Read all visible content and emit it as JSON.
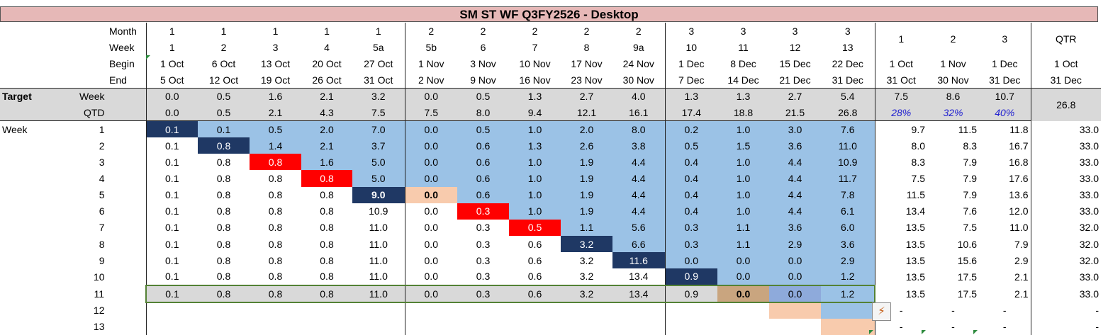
{
  "title": "SM ST WF Q3FY2526 - Desktop",
  "colors": {
    "title_bg": "#e6b8b7",
    "blue": "#9bc2e6",
    "navy": "#1f3864",
    "red": "#ff0000",
    "peach": "#f8cbad",
    "tan": "#c9a57f",
    "steel": "#8eaadb",
    "gray": "#d9d9d9",
    "selection": "#548235",
    "percent_text": "#1f1fd0"
  },
  "header": {
    "month_label": "Month",
    "week_label": "Week",
    "begin_label": "Begin",
    "end_label": "End",
    "months": [
      "1",
      "1",
      "1",
      "1",
      "1",
      "2",
      "2",
      "2",
      "2",
      "2",
      "3",
      "3",
      "3",
      "3"
    ],
    "weeks": [
      "1",
      "2",
      "3",
      "4",
      "5a",
      "5b",
      "6",
      "7",
      "8",
      "9a",
      "10",
      "11",
      "12",
      "13"
    ],
    "begins": [
      "1 Oct",
      "6 Oct",
      "13 Oct",
      "20 Oct",
      "27 Oct",
      "1 Nov",
      "3 Nov",
      "10 Nov",
      "17 Nov",
      "24 Nov",
      "1 Dec",
      "8 Dec",
      "15 Dec",
      "22 Dec"
    ],
    "ends": [
      "5 Oct",
      "12 Oct",
      "19 Oct",
      "26 Oct",
      "31 Oct",
      "2 Nov",
      "9 Nov",
      "16 Nov",
      "23 Nov",
      "30 Nov",
      "7 Dec",
      "14 Dec",
      "21 Dec",
      "31 Dec"
    ],
    "summary_months": [
      "1",
      "2",
      "3"
    ],
    "summary_begins": [
      "1 Oct",
      "1 Nov",
      "1 Dec"
    ],
    "summary_ends": [
      "31 Oct",
      "30 Nov",
      "31 Dec"
    ],
    "qtr_label": "QTR",
    "qtr_begin": "1 Oct",
    "qtr_end": "31 Dec"
  },
  "target": {
    "label": "Target",
    "week_label": "Week",
    "qtd_label": "QTD",
    "week": [
      "0.0",
      "0.5",
      "1.6",
      "2.1",
      "3.2",
      "0.0",
      "0.5",
      "1.3",
      "2.7",
      "4.0",
      "1.3",
      "1.3",
      "2.7",
      "5.4"
    ],
    "week_summary": [
      "7.5",
      "8.6",
      "10.7"
    ],
    "week_qtr": "26.8",
    "qtd": [
      "0.0",
      "0.5",
      "2.1",
      "4.3",
      "7.5",
      "7.5",
      "8.0",
      "9.4",
      "12.1",
      "16.1",
      "17.4",
      "18.8",
      "21.5",
      "26.8"
    ],
    "qtd_percent": [
      "28%",
      "32%",
      "40%"
    ]
  },
  "forecast": {
    "row_group_label": "Week",
    "rows": [
      {
        "week": "1",
        "values": [
          "0.1",
          "0.1",
          "0.5",
          "2.0",
          "7.0",
          "0.0",
          "0.5",
          "1.0",
          "2.0",
          "8.0",
          "0.2",
          "1.0",
          "3.0",
          "7.6"
        ],
        "months": [
          "9.7",
          "11.5",
          "11.8"
        ],
        "qtr": "33.0"
      },
      {
        "week": "2",
        "values": [
          "0.1",
          "0.8",
          "1.4",
          "2.1",
          "3.7",
          "0.0",
          "0.6",
          "1.3",
          "2.6",
          "3.8",
          "0.5",
          "1.5",
          "3.6",
          "11.0"
        ],
        "months": [
          "8.0",
          "8.3",
          "16.7"
        ],
        "qtr": "33.0"
      },
      {
        "week": "3",
        "values": [
          "0.1",
          "0.8",
          "0.8",
          "1.6",
          "5.0",
          "0.0",
          "0.6",
          "1.0",
          "1.9",
          "4.4",
          "0.4",
          "1.0",
          "4.4",
          "10.9"
        ],
        "months": [
          "8.3",
          "7.9",
          "16.8"
        ],
        "qtr": "33.0"
      },
      {
        "week": "4",
        "values": [
          "0.1",
          "0.8",
          "0.8",
          "0.8",
          "5.0",
          "0.0",
          "0.6",
          "1.0",
          "1.9",
          "4.4",
          "0.4",
          "1.0",
          "4.4",
          "11.7"
        ],
        "months": [
          "7.5",
          "7.9",
          "17.6"
        ],
        "qtr": "33.0"
      },
      {
        "week": "5",
        "values": [
          "0.1",
          "0.8",
          "0.8",
          "0.8",
          "9.0",
          "0.0",
          "0.6",
          "1.0",
          "1.9",
          "4.4",
          "0.4",
          "1.0",
          "4.4",
          "7.8"
        ],
        "months": [
          "11.5",
          "7.9",
          "13.6"
        ],
        "qtr": "33.0"
      },
      {
        "week": "6",
        "values": [
          "0.1",
          "0.8",
          "0.8",
          "0.8",
          "10.9",
          "0.0",
          "0.3",
          "1.0",
          "1.9",
          "4.4",
          "0.4",
          "1.0",
          "4.4",
          "6.1"
        ],
        "months": [
          "13.4",
          "7.6",
          "12.0"
        ],
        "qtr": "33.0"
      },
      {
        "week": "7",
        "values": [
          "0.1",
          "0.8",
          "0.8",
          "0.8",
          "11.0",
          "0.0",
          "0.3",
          "0.5",
          "1.1",
          "5.6",
          "0.3",
          "1.1",
          "3.6",
          "6.0"
        ],
        "months": [
          "13.5",
          "7.5",
          "11.0"
        ],
        "qtr": "32.0"
      },
      {
        "week": "8",
        "values": [
          "0.1",
          "0.8",
          "0.8",
          "0.8",
          "11.0",
          "0.0",
          "0.3",
          "0.6",
          "3.2",
          "6.6",
          "0.3",
          "1.1",
          "2.9",
          "3.6"
        ],
        "months": [
          "13.5",
          "10.6",
          "7.9"
        ],
        "qtr": "32.0"
      },
      {
        "week": "9",
        "values": [
          "0.1",
          "0.8",
          "0.8",
          "0.8",
          "11.0",
          "0.0",
          "0.3",
          "0.6",
          "3.2",
          "11.6",
          "0.0",
          "0.0",
          "0.0",
          "2.9"
        ],
        "months": [
          "13.5",
          "15.6",
          "2.9"
        ],
        "qtr": "32.0"
      },
      {
        "week": "10",
        "values": [
          "0.1",
          "0.8",
          "0.8",
          "0.8",
          "11.0",
          "0.0",
          "0.3",
          "0.6",
          "3.2",
          "13.4",
          "0.9",
          "0.0",
          "0.0",
          "1.2"
        ],
        "months": [
          "13.5",
          "17.5",
          "2.1"
        ],
        "qtr": "33.0"
      },
      {
        "week": "11",
        "values": [
          "0.1",
          "0.8",
          "0.8",
          "0.8",
          "11.0",
          "0.0",
          "0.3",
          "0.6",
          "3.2",
          "13.4",
          "0.9",
          "0.0",
          "0.0",
          "1.2"
        ],
        "months": [
          "13.5",
          "17.5",
          "2.1"
        ],
        "qtr": "33.0"
      },
      {
        "week": "12",
        "values": [
          "",
          "",
          "",
          "",
          "",
          "",
          "",
          "",
          "",
          "",
          "",
          "",
          "",
          ""
        ],
        "months": [
          "-",
          "-",
          "-"
        ],
        "qtr": "-"
      },
      {
        "week": "13",
        "values": [
          "",
          "",
          "",
          "",
          "",
          "",
          "",
          "",
          "",
          "",
          "",
          "",
          "",
          ""
        ],
        "months": [
          "-",
          "-",
          "-"
        ],
        "qtr": "-"
      }
    ]
  }
}
